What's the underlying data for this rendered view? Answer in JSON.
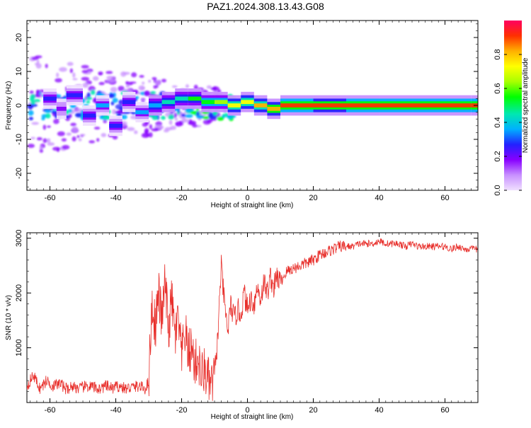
{
  "title": "PAZ1.2024.308.13.43.G08",
  "colors": {
    "snr_line": "#e8302c",
    "colormap": [
      "#f0e0ff",
      "#c890ff",
      "#8800ff",
      "#2222ff",
      "#00b0ff",
      "#00e8b0",
      "#00ff00",
      "#a8ff00",
      "#ffff00",
      "#ffb000",
      "#ff3000",
      "#ff0060"
    ]
  },
  "chart_data": [
    {
      "type": "heatmap",
      "xlabel": "Height of straight line (km)",
      "ylabel": "Frequency (Hz)",
      "xlim": [
        -67,
        70
      ],
      "ylim": [
        -25,
        25
      ],
      "x_ticks": [
        -60,
        -40,
        -20,
        0,
        20,
        40,
        60
      ],
      "y_ticks": [
        -20,
        -10,
        0,
        10,
        20
      ],
      "colorbar": {
        "label": "Normalized spectral amplitude",
        "range": [
          0,
          1
        ],
        "ticks": [
          0.0,
          0.2,
          0.4,
          0.6,
          0.8
        ]
      },
      "description_points": [
        {
          "x": -62,
          "y": 2,
          "v": 0.25
        },
        {
          "x": -58,
          "y": -1,
          "v": 0.2
        },
        {
          "x": -55,
          "y": 3,
          "v": 0.3
        },
        {
          "x": -50,
          "y": -3,
          "v": 0.25
        },
        {
          "x": -46,
          "y": 0,
          "v": 0.35
        },
        {
          "x": -42,
          "y": -6,
          "v": 0.3
        },
        {
          "x": -38,
          "y": 1,
          "v": 0.3
        },
        {
          "x": -34,
          "y": -2,
          "v": 0.35
        },
        {
          "x": -30,
          "y": 0,
          "v": 0.4
        },
        {
          "x": -26,
          "y": 1,
          "v": 0.45
        },
        {
          "x": -22,
          "y": 2,
          "v": 0.45
        },
        {
          "x": -18,
          "y": 2,
          "v": 0.5
        },
        {
          "x": -14,
          "y": 1,
          "v": 0.55
        },
        {
          "x": -10,
          "y": 1,
          "v": 0.6
        },
        {
          "x": -6,
          "y": 0,
          "v": 0.7
        },
        {
          "x": -2,
          "y": 1,
          "v": 0.75
        },
        {
          "x": 2,
          "y": 0,
          "v": 0.8
        },
        {
          "x": 6,
          "y": -1,
          "v": 0.85
        },
        {
          "x": 10,
          "y": 0,
          "v": 0.95
        },
        {
          "x": 20,
          "y": 0,
          "v": 0.9
        },
        {
          "x": 30,
          "y": 0,
          "v": 0.95
        },
        {
          "x": 40,
          "y": 0,
          "v": 0.95
        },
        {
          "x": 50,
          "y": 0,
          "v": 0.95
        },
        {
          "x": 60,
          "y": 0,
          "v": 0.95
        },
        {
          "x": 68,
          "y": 0,
          "v": 0.95
        }
      ]
    },
    {
      "type": "line",
      "xlabel": "Height of straight line (km)",
      "ylabel": "SNR (10 * v/v)",
      "xlim": [
        -67,
        70
      ],
      "ylim": [
        0,
        3100
      ],
      "x_ticks": [
        -60,
        -40,
        -20,
        0,
        20,
        40,
        60
      ],
      "y_ticks": [
        1000,
        2000,
        3000
      ],
      "series": [
        {
          "x": [
            -67,
            -65,
            -63,
            -61,
            -59,
            -57,
            -55,
            -53,
            -51,
            -49,
            -47,
            -45,
            -43,
            -41,
            -39,
            -37,
            -35,
            -33,
            -31,
            -30,
            -29,
            -28,
            -27,
            -26,
            -25,
            -24,
            -23,
            -22,
            -21,
            -20,
            -19,
            -18,
            -17,
            -16,
            -15,
            -14,
            -13,
            -12,
            -11,
            -10,
            -9,
            -8,
            -7,
            -6,
            -5,
            -4,
            -3,
            -2,
            -1,
            0,
            1,
            2,
            3,
            4,
            5,
            6,
            7,
            8,
            9,
            10,
            12,
            14,
            16,
            18,
            20,
            22,
            24,
            26,
            28,
            30,
            32,
            34,
            36,
            38,
            40,
            42,
            44,
            46,
            48,
            50,
            52,
            54,
            56,
            58,
            60,
            62,
            64,
            66,
            68,
            70
          ],
          "y": [
            300,
            500,
            250,
            400,
            300,
            350,
            250,
            300,
            250,
            300,
            280,
            250,
            300,
            260,
            300,
            250,
            280,
            300,
            250,
            400,
            1800,
            1400,
            2000,
            1500,
            2200,
            1300,
            1900,
            1200,
            1500,
            800,
            1300,
            900,
            1000,
            700,
            800,
            500,
            600,
            400,
            300,
            500,
            1200,
            2500,
            1800,
            1300,
            1800,
            1500,
            1700,
            1600,
            2000,
            1700,
            1900,
            1800,
            2100,
            1900,
            2200,
            2000,
            2300,
            2100,
            2300,
            2200,
            2400,
            2450,
            2500,
            2550,
            2600,
            2700,
            2750,
            2800,
            2850,
            2850,
            2850,
            2900,
            2900,
            2900,
            2950,
            2900,
            2900,
            2900,
            2850,
            2900,
            2850,
            2850,
            2850,
            2850,
            2850,
            2800,
            2850,
            2800,
            2800,
            2800
          ]
        }
      ]
    }
  ]
}
